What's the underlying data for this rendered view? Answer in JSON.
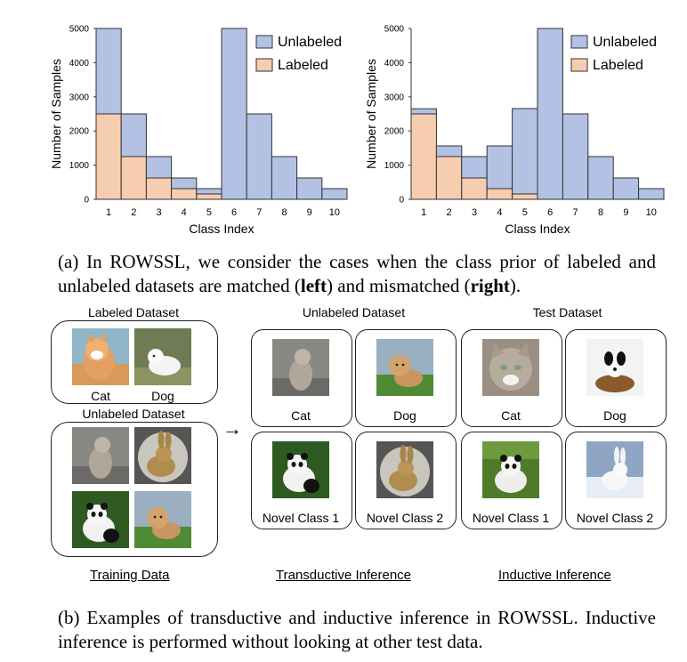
{
  "chart_data": [
    {
      "type": "bar",
      "stacked": true,
      "categories": [
        "1",
        "2",
        "3",
        "4",
        "5",
        "6",
        "7",
        "8",
        "9",
        "10"
      ],
      "series": [
        {
          "name": "Unlabeled",
          "color": "#b3c2e4",
          "values": [
            2500,
            1250,
            625,
            312,
            156,
            5000,
            2500,
            1250,
            625,
            312
          ]
        },
        {
          "name": "Labeled",
          "color": "#f7cdb0",
          "values": [
            2500,
            1250,
            625,
            312,
            156,
            0,
            0,
            0,
            0,
            0
          ]
        }
      ],
      "ylabel": "Number of Samples",
      "xlabel": "Class Index",
      "ylim": [
        0,
        5000
      ],
      "yticks": [
        "0",
        "1000",
        "2000",
        "3000",
        "4000",
        "5000"
      ],
      "legend": "top-right"
    },
    {
      "type": "bar",
      "stacked": true,
      "categories": [
        "1",
        "2",
        "3",
        "4",
        "5",
        "6",
        "7",
        "8",
        "9",
        "10"
      ],
      "series": [
        {
          "name": "Unlabeled",
          "color": "#b3c2e4",
          "values": [
            150,
            312,
            625,
            1250,
            2500,
            5000,
            2500,
            1250,
            625,
            312
          ]
        },
        {
          "name": "Labeled",
          "color": "#f7cdb0",
          "values": [
            2500,
            1250,
            625,
            312,
            156,
            0,
            0,
            0,
            0,
            0
          ]
        }
      ],
      "ylabel": "Number of Samples",
      "xlabel": "Class Index",
      "ylim": [
        0,
        5000
      ],
      "yticks": [
        "0",
        "1000",
        "2000",
        "3000",
        "4000",
        "5000"
      ],
      "legend": "top-right"
    }
  ],
  "caption_a": {
    "pre": "(a) In ROWSSL, we consider the cases when the class prior of labeled and unlabeled datasets are matched (",
    "left": "left",
    "mid": ") and mismatched (",
    "right": "right",
    "post": ")."
  },
  "caption_b": "(b) Examples of transductive and inductive inference in ROWSSL. Inductive inference is performed without looking at other test data.",
  "diagram": {
    "labeled_dataset": "Labeled Dataset",
    "unlabeled_dataset_train": "Unlabeled Dataset",
    "unlabeled_dataset": "Unlabeled Dataset",
    "test_dataset": "Test Dataset",
    "cat": "Cat",
    "dog": "Dog",
    "novel1": "Novel Class 1",
    "novel2": "Novel Class 2",
    "training_data": "Training Data",
    "transductive": "Transductive Inference",
    "inductive": "Inductive Inference",
    "arrow": "→"
  }
}
